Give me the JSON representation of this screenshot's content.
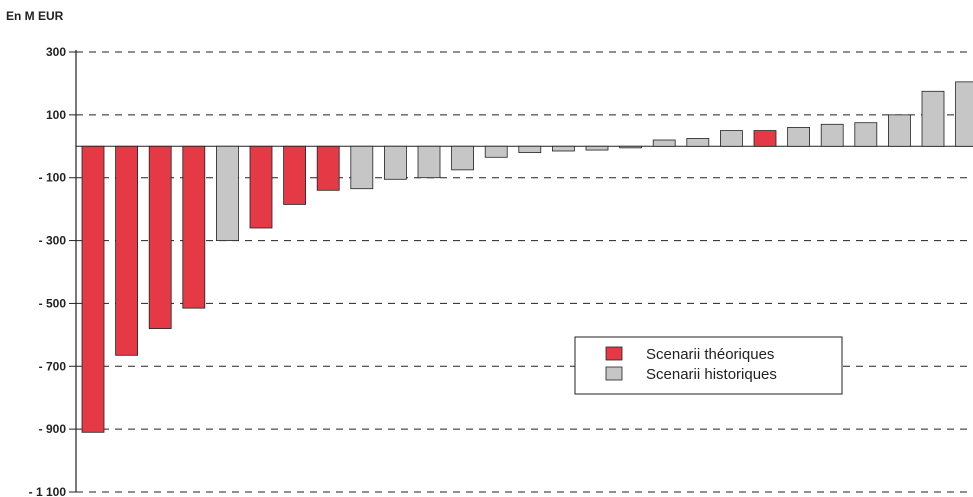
{
  "chart_data": {
    "type": "bar",
    "unit_label": "En M EUR",
    "ylim": [
      -1100,
      300
    ],
    "y_ticks": [
      300,
      100,
      -100,
      -300,
      -500,
      -700,
      -900,
      -1100
    ],
    "y_tick_labels": [
      "300",
      "100",
      "- 100",
      "- 300",
      "- 500",
      "- 700",
      "- 900",
      "- 1 100"
    ],
    "grid": "horizontal dashed",
    "legend_position": "center-right",
    "series": [
      {
        "name": "Scenarii théoriques",
        "color": "#e63946"
      },
      {
        "name": "Scenarii historiques",
        "color": "#c6c6c6"
      }
    ],
    "values": [
      -910,
      -665,
      -580,
      -515,
      -300,
      -260,
      -185,
      -140,
      -135,
      -105,
      -100,
      -75,
      -35,
      -20,
      -15,
      -12,
      -5,
      20,
      25,
      50,
      50,
      60,
      70,
      75,
      100,
      175,
      205
    ],
    "series_index": [
      0,
      0,
      0,
      0,
      1,
      0,
      0,
      0,
      1,
      1,
      1,
      1,
      1,
      1,
      1,
      1,
      1,
      1,
      1,
      1,
      0,
      1,
      1,
      1,
      1,
      1,
      1
    ]
  }
}
